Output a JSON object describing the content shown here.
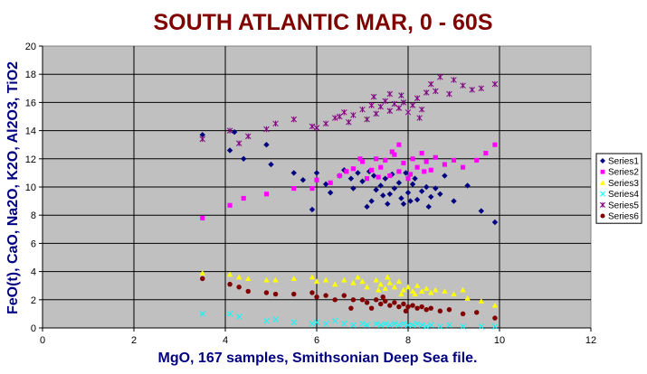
{
  "chart_data": {
    "type": "scatter",
    "title": "SOUTH ATLANTIC MAR, 0 - 60S",
    "xlabel": "MgO, 167 samples, Smithsonian Deep Sea file.",
    "ylabel": "FeO(t), CaO, Na2O, K2O, Al2O3, TiO2",
    "xlim": [
      0,
      12
    ],
    "ylim": [
      0,
      20
    ],
    "xticks": [
      "0",
      "2",
      "4",
      "6",
      "8",
      "10",
      "12"
    ],
    "yticks": [
      "0",
      "2",
      "4",
      "6",
      "8",
      "10",
      "12",
      "14",
      "16",
      "18",
      "20"
    ],
    "grid": true,
    "legend": "right",
    "series": [
      {
        "name": "Series1",
        "color": "#000080",
        "marker": "diamond",
        "points": [
          [
            3.5,
            13.7
          ],
          [
            4.1,
            12.6
          ],
          [
            4.2,
            13.9
          ],
          [
            4.4,
            12.0
          ],
          [
            4.9,
            13.0
          ],
          [
            5.0,
            11.6
          ],
          [
            5.5,
            11.0
          ],
          [
            5.7,
            10.5
          ],
          [
            5.9,
            8.4
          ],
          [
            6.0,
            11.0
          ],
          [
            6.2,
            10.2
          ],
          [
            6.3,
            9.6
          ],
          [
            6.5,
            10.8
          ],
          [
            6.6,
            11.2
          ],
          [
            6.8,
            9.9
          ],
          [
            6.9,
            11.0
          ],
          [
            7.0,
            10.4
          ],
          [
            7.1,
            8.6
          ],
          [
            7.2,
            9.0
          ],
          [
            7.3,
            9.8
          ],
          [
            7.4,
            10.1
          ],
          [
            7.5,
            10.6
          ],
          [
            7.6,
            9.5
          ],
          [
            7.7,
            9.9
          ],
          [
            7.8,
            10.3
          ],
          [
            7.9,
            8.8
          ],
          [
            8.0,
            9.6
          ],
          [
            8.1,
            10.2
          ],
          [
            8.2,
            9.1
          ],
          [
            8.3,
            9.7
          ],
          [
            8.4,
            10.0
          ],
          [
            8.5,
            9.3
          ],
          [
            8.6,
            9.9
          ],
          [
            8.7,
            9.5
          ],
          [
            8.8,
            10.8
          ],
          [
            9.0,
            9.0
          ],
          [
            9.3,
            10.1
          ],
          [
            9.6,
            8.3
          ],
          [
            9.9,
            7.5
          ],
          [
            7.25,
            10.8
          ],
          [
            7.55,
            8.8
          ],
          [
            7.85,
            9.2
          ],
          [
            8.15,
            10.6
          ],
          [
            8.45,
            8.6
          ],
          [
            7.45,
            9.4
          ],
          [
            8.05,
            9.0
          ],
          [
            7.65,
            10.9
          ],
          [
            7.95,
            11.0
          ],
          [
            6.75,
            10.6
          ],
          [
            7.15,
            11.1
          ]
        ]
      },
      {
        "name": "Series2",
        "color": "#ff00ff",
        "marker": "square",
        "points": [
          [
            3.5,
            7.8
          ],
          [
            4.1,
            8.7
          ],
          [
            4.4,
            9.2
          ],
          [
            4.9,
            9.5
          ],
          [
            5.5,
            9.9
          ],
          [
            5.9,
            9.9
          ],
          [
            6.0,
            10.5
          ],
          [
            6.3,
            10.3
          ],
          [
            6.5,
            10.8
          ],
          [
            6.8,
            11.3
          ],
          [
            7.0,
            11.8
          ],
          [
            7.1,
            10.6
          ],
          [
            7.2,
            11.2
          ],
          [
            7.3,
            12.0
          ],
          [
            7.4,
            11.4
          ],
          [
            7.5,
            11.9
          ],
          [
            7.6,
            10.8
          ],
          [
            7.7,
            12.3
          ],
          [
            7.8,
            11.1
          ],
          [
            7.9,
            11.7
          ],
          [
            8.0,
            10.6
          ],
          [
            8.1,
            12.0
          ],
          [
            8.2,
            11.4
          ],
          [
            8.3,
            12.4
          ],
          [
            8.4,
            11.8
          ],
          [
            8.5,
            11.2
          ],
          [
            8.6,
            12.1
          ],
          [
            8.8,
            11.6
          ],
          [
            9.0,
            11.9
          ],
          [
            9.2,
            11.4
          ],
          [
            9.5,
            11.9
          ],
          [
            9.7,
            12.4
          ],
          [
            9.9,
            13.0
          ],
          [
            7.8,
            13.0
          ],
          [
            8.05,
            10.9
          ],
          [
            7.35,
            10.7
          ],
          [
            6.95,
            12.0
          ],
          [
            7.65,
            12.5
          ],
          [
            8.35,
            11.1
          ],
          [
            6.65,
            11.1
          ]
        ]
      },
      {
        "name": "Series3",
        "color": "#ffff00",
        "marker": "triangle",
        "points": [
          [
            3.5,
            3.9
          ],
          [
            4.1,
            3.8
          ],
          [
            4.3,
            3.6
          ],
          [
            4.5,
            3.5
          ],
          [
            4.9,
            3.4
          ],
          [
            5.1,
            3.4
          ],
          [
            5.5,
            3.5
          ],
          [
            5.9,
            3.6
          ],
          [
            6.0,
            3.3
          ],
          [
            6.2,
            3.4
          ],
          [
            6.4,
            3.1
          ],
          [
            6.6,
            3.4
          ],
          [
            6.8,
            3.2
          ],
          [
            7.0,
            3.3
          ],
          [
            7.1,
            2.9
          ],
          [
            7.3,
            3.4
          ],
          [
            7.4,
            3.1
          ],
          [
            7.5,
            2.8
          ],
          [
            7.6,
            3.2
          ],
          [
            7.7,
            2.9
          ],
          [
            7.8,
            3.3
          ],
          [
            7.9,
            2.7
          ],
          [
            8.0,
            2.9
          ],
          [
            8.1,
            2.6
          ],
          [
            8.2,
            3.0
          ],
          [
            8.3,
            2.6
          ],
          [
            8.4,
            2.8
          ],
          [
            8.5,
            2.5
          ],
          [
            8.6,
            2.7
          ],
          [
            8.8,
            2.6
          ],
          [
            9.0,
            2.4
          ],
          [
            9.2,
            2.7
          ],
          [
            9.3,
            2.1
          ],
          [
            9.6,
            1.9
          ],
          [
            9.9,
            1.6
          ],
          [
            7.35,
            2.7
          ],
          [
            7.85,
            2.4
          ],
          [
            6.9,
            3.6
          ],
          [
            8.15,
            2.4
          ],
          [
            7.55,
            3.6
          ]
        ]
      },
      {
        "name": "Series4",
        "color": "#00ffff",
        "marker": "x",
        "points": [
          [
            3.5,
            1.0
          ],
          [
            4.1,
            1.0
          ],
          [
            4.3,
            0.8
          ],
          [
            4.9,
            0.5
          ],
          [
            5.1,
            0.6
          ],
          [
            5.5,
            0.4
          ],
          [
            5.9,
            0.3
          ],
          [
            6.0,
            0.4
          ],
          [
            6.2,
            0.3
          ],
          [
            6.4,
            0.5
          ],
          [
            6.6,
            0.3
          ],
          [
            6.8,
            0.2
          ],
          [
            7.0,
            0.3
          ],
          [
            7.1,
            0.2
          ],
          [
            7.3,
            0.3
          ],
          [
            7.4,
            0.2
          ],
          [
            7.5,
            0.3
          ],
          [
            7.6,
            0.2
          ],
          [
            7.7,
            0.3
          ],
          [
            7.8,
            0.2
          ],
          [
            7.9,
            0.3
          ],
          [
            8.0,
            0.2
          ],
          [
            8.1,
            0.2
          ],
          [
            8.2,
            0.3
          ],
          [
            8.3,
            0.2
          ],
          [
            8.4,
            0.1
          ],
          [
            8.5,
            0.2
          ],
          [
            8.7,
            0.1
          ],
          [
            8.9,
            0.2
          ],
          [
            9.2,
            0.1
          ],
          [
            9.6,
            0.1
          ],
          [
            9.9,
            0.1
          ]
        ]
      },
      {
        "name": "Series5",
        "color": "#800080",
        "marker": "star",
        "points": [
          [
            3.5,
            13.4
          ],
          [
            4.1,
            14.0
          ],
          [
            4.3,
            13.1
          ],
          [
            4.5,
            13.6
          ],
          [
            4.9,
            14.1
          ],
          [
            5.1,
            14.5
          ],
          [
            5.5,
            14.8
          ],
          [
            5.9,
            14.3
          ],
          [
            6.0,
            14.2
          ],
          [
            6.2,
            14.5
          ],
          [
            6.4,
            14.9
          ],
          [
            6.6,
            15.3
          ],
          [
            6.7,
            14.6
          ],
          [
            6.8,
            15.1
          ],
          [
            7.0,
            15.5
          ],
          [
            7.1,
            14.8
          ],
          [
            7.2,
            15.8
          ],
          [
            7.3,
            15.2
          ],
          [
            7.4,
            15.7
          ],
          [
            7.5,
            16.1
          ],
          [
            7.6,
            15.4
          ],
          [
            7.7,
            15.9
          ],
          [
            7.8,
            15.6
          ],
          [
            7.9,
            16.0
          ],
          [
            8.0,
            15.3
          ],
          [
            8.1,
            15.8
          ],
          [
            8.2,
            16.3
          ],
          [
            8.3,
            15.5
          ],
          [
            8.4,
            16.7
          ],
          [
            8.5,
            17.3
          ],
          [
            8.6,
            16.8
          ],
          [
            8.7,
            17.8
          ],
          [
            8.9,
            16.6
          ],
          [
            9.0,
            17.6
          ],
          [
            9.2,
            17.2
          ],
          [
            9.4,
            16.9
          ],
          [
            9.6,
            17.0
          ],
          [
            9.9,
            17.3
          ],
          [
            7.25,
            16.4
          ],
          [
            7.85,
            16.5
          ],
          [
            6.5,
            15.0
          ],
          [
            7.6,
            16.6
          ],
          [
            8.25,
            14.9
          ]
        ]
      },
      {
        "name": "Series6",
        "color": "#800000",
        "marker": "circle",
        "points": [
          [
            3.5,
            3.5
          ],
          [
            4.1,
            3.1
          ],
          [
            4.3,
            2.9
          ],
          [
            4.5,
            2.6
          ],
          [
            4.9,
            2.5
          ],
          [
            5.1,
            2.4
          ],
          [
            5.5,
            2.4
          ],
          [
            5.9,
            2.5
          ],
          [
            6.0,
            2.2
          ],
          [
            6.2,
            2.3
          ],
          [
            6.4,
            2.0
          ],
          [
            6.6,
            2.3
          ],
          [
            6.8,
            2.0
          ],
          [
            7.0,
            2.0
          ],
          [
            7.1,
            1.8
          ],
          [
            7.3,
            2.0
          ],
          [
            7.4,
            1.7
          ],
          [
            7.5,
            1.9
          ],
          [
            7.6,
            1.6
          ],
          [
            7.7,
            1.8
          ],
          [
            7.8,
            1.5
          ],
          [
            7.9,
            1.7
          ],
          [
            8.0,
            1.5
          ],
          [
            8.1,
            1.6
          ],
          [
            8.2,
            1.4
          ],
          [
            8.3,
            1.5
          ],
          [
            8.4,
            1.3
          ],
          [
            8.5,
            1.4
          ],
          [
            8.7,
            1.2
          ],
          [
            8.9,
            1.3
          ],
          [
            9.2,
            1.0
          ],
          [
            9.5,
            1.1
          ],
          [
            9.9,
            0.7
          ],
          [
            7.2,
            1.4
          ],
          [
            7.45,
            2.2
          ],
          [
            7.95,
            1.2
          ],
          [
            6.75,
            1.4
          ]
        ]
      }
    ]
  }
}
